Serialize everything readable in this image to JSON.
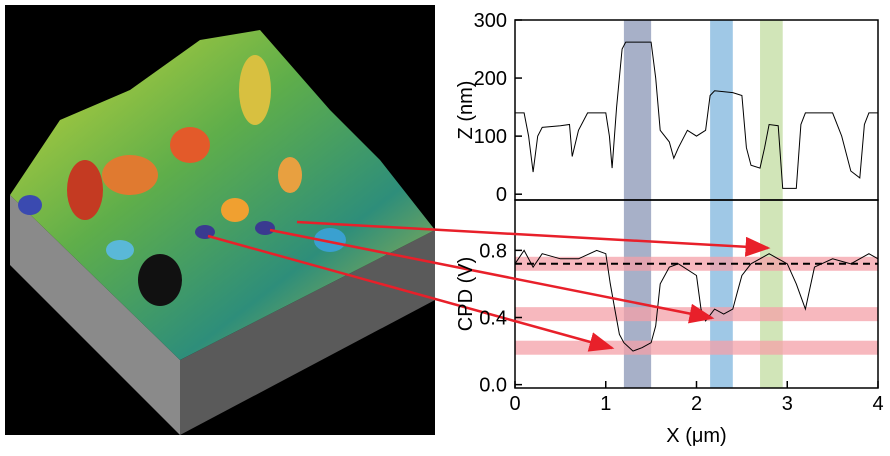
{
  "chart_data": [
    {
      "type": "line",
      "ylabel": "Z (nm)",
      "color": "#000000",
      "xlim": [
        0,
        4
      ],
      "ylim": [
        -10,
        300
      ],
      "yticks": [
        0,
        100,
        200,
        300
      ],
      "x": [
        0,
        0.1,
        0.15,
        0.2,
        0.25,
        0.3,
        0.5,
        0.6,
        0.63,
        0.7,
        0.8,
        0.9,
        1.0,
        1.04,
        1.07,
        1.12,
        1.18,
        1.22,
        1.3,
        1.5,
        1.55,
        1.6,
        1.7,
        1.75,
        1.8,
        1.9,
        2.0,
        2.1,
        2.15,
        2.2,
        2.4,
        2.5,
        2.55,
        2.6,
        2.7,
        2.75,
        2.8,
        2.9,
        2.95,
        3.1,
        3.15,
        3.2,
        3.5,
        3.6,
        3.7,
        3.8,
        3.85,
        3.9,
        4.0
      ],
      "values": [
        140,
        140,
        100,
        38,
        100,
        115,
        118,
        120,
        65,
        110,
        140,
        140,
        140,
        100,
        45,
        150,
        250,
        262,
        262,
        262,
        200,
        110,
        90,
        62,
        80,
        110,
        100,
        110,
        170,
        178,
        175,
        170,
        80,
        50,
        45,
        80,
        120,
        118,
        10,
        10,
        120,
        140,
        140,
        100,
        40,
        28,
        120,
        140,
        140
      ],
      "highlight_regions": [
        {
          "xlim": [
            1.2,
            1.5
          ],
          "color": "#8a95b5"
        },
        {
          "xlim": [
            2.15,
            2.4
          ],
          "color": "#7fb5dd"
        },
        {
          "xlim": [
            2.7,
            2.95
          ],
          "color": "#c2dca0"
        }
      ]
    },
    {
      "type": "line",
      "xlabel": "X (μm)",
      "ylabel": "CPD (V)",
      "color": "#000000",
      "xlim": [
        0,
        4
      ],
      "ylim": [
        -0.02,
        1.1
      ],
      "xticks": [
        0,
        1,
        2,
        3,
        4
      ],
      "yticks": [
        {
          "value": 0,
          "label": "0.0"
        },
        0.4,
        0.8
      ],
      "x": [
        0,
        0.1,
        0.2,
        0.3,
        0.5,
        0.7,
        0.9,
        1.0,
        1.05,
        1.1,
        1.15,
        1.2,
        1.3,
        1.4,
        1.5,
        1.55,
        1.6,
        1.7,
        1.8,
        2.0,
        2.05,
        2.1,
        2.2,
        2.3,
        2.4,
        2.45,
        2.5,
        2.6,
        2.7,
        2.8,
        2.9,
        3.0,
        3.1,
        3.2,
        3.3,
        3.5,
        3.7,
        3.9,
        4.0
      ],
      "values": [
        0.72,
        0.8,
        0.7,
        0.78,
        0.75,
        0.75,
        0.8,
        0.78,
        0.6,
        0.45,
        0.3,
        0.25,
        0.2,
        0.22,
        0.25,
        0.35,
        0.6,
        0.7,
        0.72,
        0.65,
        0.45,
        0.38,
        0.45,
        0.42,
        0.45,
        0.55,
        0.65,
        0.72,
        0.75,
        0.78,
        0.75,
        0.72,
        0.6,
        0.45,
        0.7,
        0.75,
        0.72,
        0.78,
        0.75
      ],
      "reference_bands": [
        0.72,
        0.42,
        0.22
      ],
      "band_color": "#f4a0a8",
      "reference_line": 0.72
    }
  ]
}
